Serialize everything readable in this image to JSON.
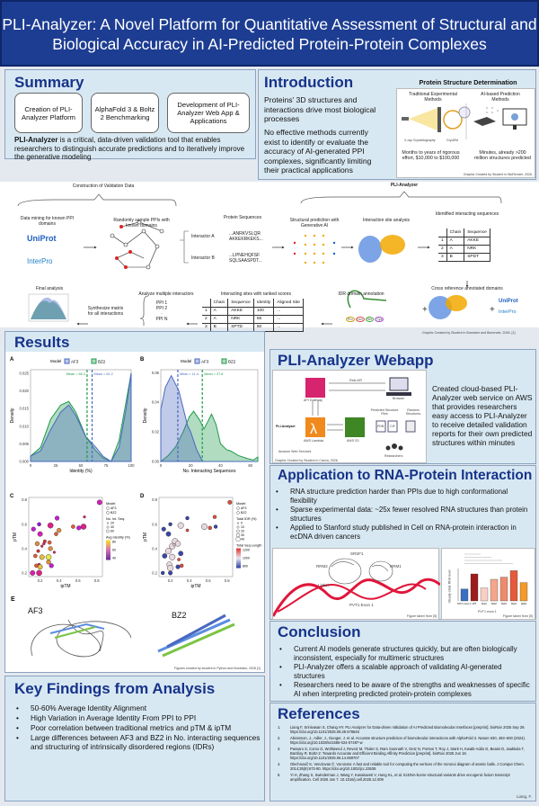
{
  "title": {
    "line1": "PLI-Analyzer: A Novel Platform for Quantitative Assessment of Structural and",
    "line2": "Biological Accuracy in AI-Predicted Protein-Protein Complexes"
  },
  "summary": {
    "heading": "Summary",
    "pills": [
      "Creation of PLI-Analyzer Platform",
      "AlphaFold 3 & Boltz 2 Benchmarking",
      "Development of PLI-Analyzer Web App & Applications"
    ],
    "bold": "PLI-Analyzer",
    "text": " is a critical, data-driven validation tool that enables researchers to distinguish accurate predictions and to iteratively improve the generative modeling"
  },
  "intro": {
    "heading": "Introduction",
    "p1": "Proteins' 3D structures and interactions drive most biological processes",
    "p2": "No effective methods currently exist to identify or evaluate the accuracy of AI-generated PPI complexes, significantly limiting their practical applications",
    "fig_title": "Protein Structure Determination",
    "trad": "Traditional Experimental Methods",
    "ai": "AI-based Prediction Methods",
    "xray": "X-ray Crystallography",
    "cryo": "CryoEM",
    "trad_cost": "Months to years of rigorous effort, $10,000 to $100,000",
    "ai_cost": "Minutes, already >200 million structures predicted",
    "credit": "Graphic Created by Student in BioRender, 2026."
  },
  "workflow": {
    "construction": "Construction of Validation Data",
    "pli": "PLI-Analyzer",
    "mining": "Data mining for known PPI domains",
    "sample": "Randomly sample PPIs with known domains",
    "seqs": "Protein Sequences",
    "intA": "Interactor A",
    "intB": "Interactor B",
    "seqA": "...ANRKVSLQR AKKEKRKEKS...",
    "seqB": "...LPNEHQFSF SQLSAASPDT...",
    "struct": "Structural prediction with Generative AI",
    "site": "Interaction site analysis",
    "identified": "Identified interacting sequences",
    "crossref": "Cross reference annotated domains",
    "idr": "IDR domain annotation",
    "ranked": "Interacting sites with ranked scores",
    "multi": "Analyze multiple interactors",
    "synth": "Synthesize matrix for all interactions",
    "final": "Final analysis",
    "uniprot": "UniProt",
    "interpro": "InterPro",
    "ppis": [
      "PPI 1",
      "PPI 2",
      "·",
      "PPI N"
    ],
    "residues": [
      "Pro",
      "Leu",
      "Ser",
      "Cys"
    ],
    "table1": {
      "headers": [
        "",
        "Chain",
        "Sequence"
      ],
      "rows": [
        [
          "1",
          "A",
          "AKKE"
        ],
        [
          "2",
          "A",
          "NRK"
        ],
        [
          "3",
          "B",
          "SPDT"
        ]
      ]
    },
    "table2": {
      "headers": [
        "",
        "Chain",
        "Sequence",
        "Identity",
        "Aligned Site"
      ],
      "rows": [
        [
          "1",
          "A",
          "AKKE",
          "100",
          "..."
        ],
        [
          "2",
          "A",
          "NRK",
          "66",
          "..."
        ],
        [
          "3",
          "B",
          "SPTD",
          "50",
          "..."
        ]
      ]
    },
    "credit": "Graphic Created by Student in Illustrator and Biorender, 2026. [1]"
  },
  "results": {
    "heading": "Results",
    "credit": "Figures created by student in Python and Illustrator, 2026 [1]",
    "panelE": "E",
    "af3": "AF3",
    "bz2": "BZ2"
  },
  "chart_data": [
    {
      "panel": "A",
      "type": "area",
      "title": "",
      "xlabel": "Identity (%)",
      "ylabel": "Density",
      "xlim": [
        0,
        100
      ],
      "ylim": [
        0,
        0.026
      ],
      "xticks": [
        0,
        25,
        50,
        75,
        100
      ],
      "yticks": [
        0.0,
        0.005,
        0.01,
        0.015,
        0.02,
        0.025
      ],
      "legend_title": "Model",
      "legend_position": "top",
      "series": [
        {
          "name": "AF3",
          "color": "#4a68c0",
          "x": [
            0,
            10,
            20,
            30,
            38,
            45,
            55,
            65,
            72,
            80,
            88,
            95,
            100
          ],
          "y": [
            0.0015,
            0.003,
            0.009,
            0.014,
            0.016,
            0.013,
            0.007,
            0.004,
            0.0015,
            0,
            0.004,
            0.015,
            0.025
          ]
        },
        {
          "name": "BZ2",
          "color": "#1f9a4a",
          "x": [
            0,
            10,
            20,
            30,
            38,
            45,
            55,
            65,
            72,
            80,
            88,
            95,
            100
          ],
          "y": [
            0.0015,
            0.004,
            0.012,
            0.016,
            0.017,
            0.014,
            0.007,
            0.003,
            0.001,
            0,
            0.006,
            0.017,
            0.025
          ]
        }
      ],
      "annotations": [
        {
          "series": "BZ2",
          "text": "Mean = 56.2",
          "x": 56.2
        },
        {
          "series": "AF3",
          "text": "Mean = 61.2",
          "x": 61.2
        }
      ]
    },
    {
      "panel": "B",
      "type": "area",
      "title": "",
      "xlabel": "No. Interacting Sequences",
      "ylabel": "Density",
      "xlim": [
        0,
        65
      ],
      "ylim": [
        0,
        0.062
      ],
      "xticks": [
        0,
        20,
        40,
        60
      ],
      "yticks": [
        0.0,
        0.02,
        0.04,
        0.06
      ],
      "legend_title": "Model",
      "legend_position": "top",
      "series": [
        {
          "name": "AF3",
          "color": "#4a68c0",
          "x": [
            0,
            3,
            7,
            10,
            12,
            15,
            18,
            20,
            24,
            28,
            32,
            65
          ],
          "y": [
            0.035,
            0.05,
            0.058,
            0.052,
            0.048,
            0.036,
            0.024,
            0.02,
            0.008,
            0,
            0,
            0
          ]
        },
        {
          "name": "BZ2",
          "color": "#1f9a4a",
          "x": [
            0,
            5,
            10,
            15,
            19,
            22,
            26,
            29,
            32,
            34,
            37,
            40,
            44,
            47,
            52,
            58,
            62,
            65
          ],
          "y": [
            0,
            0.004,
            0.01,
            0.02,
            0.03,
            0.034,
            0.028,
            0.022,
            0.028,
            0.032,
            0.025,
            0.012,
            0.008,
            0.007,
            0.004,
            0.002,
            0.001,
            0.003
          ]
        }
      ],
      "annotations": [
        {
          "series": "AF3",
          "text": "Mean = 11.4",
          "x": 11.4
        },
        {
          "series": "BZ2",
          "text": "Mean = 27.8",
          "x": 27.8
        }
      ]
    },
    {
      "panel": "C",
      "type": "scatter",
      "xlabel": "ipTM",
      "ylabel": "pTM",
      "xlim": [
        0.08,
        0.86
      ],
      "ylim": [
        0.17,
        0.82
      ],
      "xticks": [
        0.2,
        0.4,
        0.6,
        0.8
      ],
      "yticks": [
        0.2,
        0.4,
        0.6,
        0.8
      ],
      "legend": {
        "model_title": "Model",
        "models": [
          "AF3",
          "BZ2"
        ],
        "size_title": "No. Int. Seq.",
        "sizes": [
          "20",
          "40",
          "60"
        ],
        "color_title": "Avg Identity (%)",
        "color_ticks": [
          "80",
          "60",
          "40"
        ]
      },
      "points": [
        [
          0.83,
          0.78,
          50
        ],
        [
          0.67,
          0.66,
          60
        ],
        [
          0.66,
          0.58,
          55
        ],
        [
          0.61,
          0.57,
          45
        ],
        [
          0.55,
          0.58,
          70
        ],
        [
          0.38,
          0.65,
          45
        ],
        [
          0.31,
          0.59,
          55
        ],
        [
          0.4,
          0.55,
          75
        ],
        [
          0.37,
          0.52,
          70
        ],
        [
          0.19,
          0.6,
          40
        ],
        [
          0.13,
          0.56,
          45
        ],
        [
          0.2,
          0.52,
          50
        ],
        [
          0.25,
          0.46,
          65
        ],
        [
          0.3,
          0.45,
          70
        ],
        [
          0.22,
          0.42,
          60
        ],
        [
          0.18,
          0.38,
          65
        ],
        [
          0.31,
          0.4,
          75
        ],
        [
          0.35,
          0.37,
          60
        ],
        [
          0.15,
          0.34,
          70
        ],
        [
          0.22,
          0.33,
          80
        ],
        [
          0.29,
          0.33,
          85
        ],
        [
          0.19,
          0.27,
          60
        ],
        [
          0.29,
          0.29,
          75
        ],
        [
          0.32,
          0.26,
          45
        ],
        [
          0.2,
          0.25,
          80
        ],
        [
          0.16,
          0.26,
          70
        ],
        [
          0.12,
          0.2,
          50
        ],
        [
          0.19,
          0.2,
          55
        ],
        [
          0.24,
          0.44,
          60
        ],
        [
          0.17,
          0.44,
          75
        ]
      ]
    },
    {
      "panel": "D",
      "type": "scatter",
      "xlabel": "ipTM",
      "ylabel": "pTM",
      "xlim": [
        0.08,
        0.86
      ],
      "ylim": [
        0.17,
        0.82
      ],
      "xticks": [
        0.2,
        0.4,
        0.6,
        0.8
      ],
      "yticks": [
        0.2,
        0.4,
        0.6,
        0.8
      ],
      "legend": {
        "model_title": "Model",
        "models": [
          "AF3",
          "BZ2"
        ],
        "size_title": "Total IDR (%)",
        "sizes": [
          "0",
          "10",
          "20",
          "30",
          "40"
        ],
        "color_title": "Total Seq Length",
        "color_ticks": [
          "1200",
          "1000",
          "800"
        ]
      },
      "points": [
        [
          0.83,
          0.78,
          1200
        ],
        [
          0.67,
          0.66,
          1150
        ],
        [
          0.68,
          0.58,
          800
        ],
        [
          0.62,
          0.57,
          1150
        ],
        [
          0.56,
          0.58,
          1000
        ],
        [
          0.38,
          0.65,
          800
        ],
        [
          0.31,
          0.59,
          1000
        ],
        [
          0.38,
          0.55,
          1100
        ],
        [
          0.2,
          0.6,
          800
        ],
        [
          0.13,
          0.56,
          850
        ],
        [
          0.18,
          0.52,
          900
        ],
        [
          0.25,
          0.46,
          1000
        ],
        [
          0.28,
          0.44,
          950
        ],
        [
          0.22,
          0.42,
          1000
        ],
        [
          0.18,
          0.38,
          1000
        ],
        [
          0.31,
          0.36,
          900
        ],
        [
          0.14,
          0.34,
          900
        ],
        [
          0.22,
          0.33,
          1000
        ],
        [
          0.29,
          0.31,
          1100
        ],
        [
          0.19,
          0.27,
          950
        ],
        [
          0.32,
          0.26,
          1150
        ],
        [
          0.28,
          0.25,
          850
        ],
        [
          0.2,
          0.24,
          1000
        ],
        [
          0.12,
          0.2,
          800
        ],
        [
          0.2,
          0.2,
          850
        ],
        [
          0.24,
          0.43,
          1050
        ]
      ]
    }
  ],
  "webapp": {
    "heading": "PLI-Analyzer Webapp",
    "text": "Created cloud-based PLI-Analyzer web service on AWS that provides researchers easy access to PLI-Analyzer to receive detailed validation reports for their own predicted structures within minutes",
    "api": "API Gateway",
    "rest": "Rest API",
    "browser": "Browser",
    "lambda": "AWS Lambda",
    "s3": "AWS S3",
    "pli": "PLI-Analyzer",
    "aws": "Amazon Web Services",
    "researchers": "Researchers",
    "pdb": "PDB",
    "cif": "CIF",
    "pred_files": "Predicted Structure Files",
    "report": "Random Structures",
    "credit": "Graphic Created by Student in Canva, 2026."
  },
  "rna": {
    "heading": "Application to RNA-Protein Interaction",
    "bullets": [
      "RNA structure prediction harder than PPIs due to high conformational flexibility",
      "Sparse experimental data: ~25x fewer resolved RNA structures than protein structures",
      "Applied to Stanford study published in Cell on RNA-protein interaction in ecDNA driven cancers"
    ],
    "labels": {
      "srsf1": "SRSF1",
      "rrm2": "RRM2",
      "rrm1": "RRM1",
      "linker": "Linker",
      "exon": "PVT1-Exon 1"
    },
    "credit": "Figure taken from [5]",
    "bar_ylabel": "Steady-state RNA level",
    "bar_xlabel": "PVT1 exon 1",
    "bar_categories": [
      "MYC exon 1",
      "WT",
      "Del1",
      "Del2",
      "Del3",
      "Del4",
      "pMut"
    ],
    "bar_values": [
      1.1,
      2.5,
      1.2,
      2.0,
      2.2,
      2.8,
      1.7
    ],
    "bar_colors": [
      "#3a6fc0",
      "#9c1c1c",
      "#f7d0c4",
      "#f3a68c",
      "#ee8a6e",
      "#e55a3c",
      "#f39a2a"
    ]
  },
  "conclusion": {
    "heading": "Conclusion",
    "bullets": [
      "Current AI models generate structures quickly, but are often biologically inconsistent, especially for multimeric structures",
      "PLI-Analyzer offers a scalable approach of validating AI-generated structures",
      "Researchers need to be aware of the strengths and weaknesses of specific AI when interpreting predicted protein-protein complexes"
    ]
  },
  "key": {
    "heading": "Key Findings from Analysis",
    "bullets": [
      "50-60% Average Identity Alignment",
      "High Variation in Average Identity From PPI to PPI",
      "Poor correlation between traditional metrics and pTM & ipTM",
      "Large differences between AF3 and BZ2 in No. interacting sequences and structuring of intrinsically disordered regions (IDRs)"
    ]
  },
  "refs": {
    "heading": "References",
    "items": [
      {
        "n": "1.",
        "text": "Liang F, Srinivasan S, Chang HY. PLI Analyzer for Data-driven Validation of AI Predicted Biomolecular Interfaces [preprint]. bioRxiv 2025 Sep 29. https://doi.org/10.1101/2025.09.29.678645"
      },
      {
        "n": "2.",
        "text": "Abramson, J., Adler, J., Dunger, J. et al. Accurate structure prediction of biomolecular interactions with AlphaFold 3. Nature 630, 493–500 (2024). https://doi.org/10.1038/s41586-024-07487-w"
      },
      {
        "n": "3.",
        "text": "Passaro S, Corso G, Wohlwend J, Reveiz M, Thaler S, Ram Somnath V, Getz N, Portnoi T, Roy J, Stark H, Kwabi-Addo D, Beaini D, Jaakkola T, Barzilay R. Boltz-2: Towards Accurate and Efficient Binding Affinity Prediction [preprint]. bioRxiv 2025 Jun 18. https://doi.org/10.1101/2025.06.14.659707"
      },
      {
        "n": "4.",
        "text": "Olechnovič K, Venclovas Č. Voronota: A fast and reliable tool for computing the vertices of the Voronoi diagram of atomic balls. J Comput Chem. 2014;35(8):672-80. https://doi.org/10.1002/jcc.23538"
      },
      {
        "n": "5.",
        "text": "Yi H, Zhang S, Swinderman J, Wang Y, Kanakaveti V, Hung KL, et al. EcDNA-borne structural variants drive oncogenic fusion transcript amplification. Cell 2026 Jan 7. 10.1016/j.cell.2025.12.009"
      }
    ],
    "author": "Liang, F."
  },
  "colors": {
    "title_bg": "#1d3d92",
    "heading": "#16338a",
    "panel": "#d8e8f2",
    "af3": "#4a68c0",
    "bz2": "#1f9a4a"
  }
}
